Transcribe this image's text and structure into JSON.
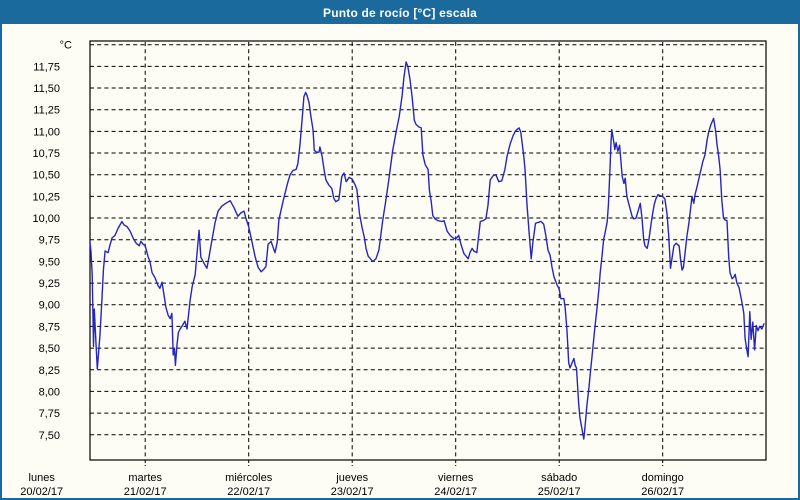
{
  "window": {
    "title": "Punto de rocío [°C] escala",
    "title_bar_color": "#1b6a9e",
    "frame_color": "#1b6a9e",
    "background_color": "#fdfdf6"
  },
  "chart_data": {
    "type": "line",
    "title": "Punto de rocío [°C] escala",
    "series_name": "Punto de rocío",
    "unit": "°C",
    "line_color": "#2525c0",
    "grid_color": "#000000",
    "grid_style": "dashed",
    "ylim": [
      7.2,
      12.05
    ],
    "y_axis": {
      "unit_label": "°C",
      "first_tick_value": 11.75,
      "tick_step": 0.25,
      "grid_top_value": 12.0,
      "grid_bottom_value": 7.5,
      "tick_labels": [
        "11,75",
        "11,50",
        "11,25",
        "11,00",
        "10,75",
        "10,50",
        "10,25",
        "10,00",
        "9,75",
        "9,50",
        "9,25",
        "9,00",
        "8,75",
        "8,50",
        "8,25",
        "8,00",
        "7,75",
        "7,50"
      ]
    },
    "x_axis": {
      "days": [
        {
          "name": "lunes",
          "date": "20/02/17",
          "hour": 0
        },
        {
          "name": "martes",
          "date": "21/02/17",
          "hour": 24
        },
        {
          "name": "miércoles",
          "date": "22/02/17",
          "hour": 48
        },
        {
          "name": "jueves",
          "date": "23/02/17",
          "hour": 72
        },
        {
          "name": "viernes",
          "date": "24/02/17",
          "hour": 96
        },
        {
          "name": "sábado",
          "date": "25/02/17",
          "hour": 120
        },
        {
          "name": "domingo",
          "date": "26/02/17",
          "hour": 144
        }
      ],
      "gridline_hours": [
        24,
        48,
        72,
        96,
        120,
        144
      ],
      "domain_hours": [
        11.2,
        167.5
      ]
    },
    "points": [
      [
        11.2,
        9.72
      ],
      [
        11.4,
        9.62
      ],
      [
        11.7,
        9.35
      ],
      [
        12.0,
        8.52
      ],
      [
        12.2,
        8.95
      ],
      [
        12.6,
        8.55
      ],
      [
        12.9,
        8.26
      ],
      [
        13.2,
        8.45
      ],
      [
        13.5,
        8.64
      ],
      [
        14.0,
        9.1
      ],
      [
        14.3,
        9.4
      ],
      [
        14.7,
        9.62
      ],
      [
        15.4,
        9.6
      ],
      [
        15.8,
        9.68
      ],
      [
        16.3,
        9.77
      ],
      [
        17.0,
        9.8
      ],
      [
        17.7,
        9.88
      ],
      [
        18.6,
        9.96
      ],
      [
        19.1,
        9.92
      ],
      [
        19.8,
        9.9
      ],
      [
        20.5,
        9.85
      ],
      [
        21.2,
        9.77
      ],
      [
        21.9,
        9.71
      ],
      [
        22.6,
        9.68
      ],
      [
        23.0,
        9.73
      ],
      [
        23.5,
        9.7
      ],
      [
        24.0,
        9.68
      ],
      [
        24.7,
        9.55
      ],
      [
        25.1,
        9.5
      ],
      [
        25.6,
        9.37
      ],
      [
        26.3,
        9.31
      ],
      [
        27.0,
        9.22
      ],
      [
        27.4,
        9.19
      ],
      [
        27.9,
        9.26
      ],
      [
        28.4,
        9.1
      ],
      [
        28.8,
        8.97
      ],
      [
        29.3,
        8.88
      ],
      [
        29.8,
        8.84
      ],
      [
        30.2,
        8.9
      ],
      [
        30.5,
        8.42
      ],
      [
        30.8,
        8.5
      ],
      [
        31.0,
        8.3
      ],
      [
        31.4,
        8.55
      ],
      [
        31.7,
        8.68
      ],
      [
        32.1,
        8.72
      ],
      [
        32.5,
        8.75
      ],
      [
        33.2,
        8.81
      ],
      [
        33.7,
        8.72
      ],
      [
        34.4,
        9.05
      ],
      [
        34.9,
        9.21
      ],
      [
        35.6,
        9.35
      ],
      [
        36.0,
        9.58
      ],
      [
        36.5,
        9.86
      ],
      [
        36.9,
        9.55
      ],
      [
        37.6,
        9.48
      ],
      [
        38.3,
        9.42
      ],
      [
        38.8,
        9.55
      ],
      [
        39.5,
        9.75
      ],
      [
        40.2,
        9.95
      ],
      [
        40.9,
        10.08
      ],
      [
        41.8,
        10.14
      ],
      [
        42.7,
        10.17
      ],
      [
        43.7,
        10.2
      ],
      [
        44.6,
        10.12
      ],
      [
        45.5,
        10.02
      ],
      [
        46.2,
        10.06
      ],
      [
        46.9,
        10.08
      ],
      [
        47.4,
        9.99
      ],
      [
        48.0,
        9.9
      ],
      [
        48.8,
        9.72
      ],
      [
        49.5,
        9.55
      ],
      [
        50.2,
        9.43
      ],
      [
        50.9,
        9.38
      ],
      [
        51.5,
        9.41
      ],
      [
        52.0,
        9.44
      ],
      [
        52.5,
        9.7
      ],
      [
        53.2,
        9.73
      ],
      [
        53.6,
        9.67
      ],
      [
        54.1,
        9.6
      ],
      [
        54.6,
        9.72
      ],
      [
        55.0,
        9.98
      ],
      [
        56.0,
        10.2
      ],
      [
        57.0,
        10.4
      ],
      [
        57.6,
        10.5
      ],
      [
        58.3,
        10.55
      ],
      [
        59.0,
        10.56
      ],
      [
        59.4,
        10.63
      ],
      [
        59.9,
        10.85
      ],
      [
        60.4,
        11.15
      ],
      [
        60.8,
        11.4
      ],
      [
        61.2,
        11.45
      ],
      [
        61.5,
        11.42
      ],
      [
        62.0,
        11.33
      ],
      [
        62.4,
        11.18
      ],
      [
        62.9,
        11.02
      ],
      [
        63.2,
        10.78
      ],
      [
        63.8,
        10.76
      ],
      [
        64.3,
        10.76
      ],
      [
        64.5,
        10.82
      ],
      [
        65.0,
        10.72
      ],
      [
        65.5,
        10.55
      ],
      [
        65.9,
        10.44
      ],
      [
        66.6,
        10.38
      ],
      [
        67.3,
        10.34
      ],
      [
        67.7,
        10.23
      ],
      [
        68.2,
        10.19
      ],
      [
        68.9,
        10.21
      ],
      [
        69.6,
        10.48
      ],
      [
        70.1,
        10.52
      ],
      [
        70.6,
        10.42
      ],
      [
        71.3,
        10.47
      ],
      [
        72.0,
        10.45
      ],
      [
        72.7,
        10.38
      ],
      [
        73.1,
        10.33
      ],
      [
        73.7,
        10.05
      ],
      [
        74.3,
        9.89
      ],
      [
        74.8,
        9.78
      ],
      [
        75.2,
        9.65
      ],
      [
        75.7,
        9.56
      ],
      [
        76.4,
        9.52
      ],
      [
        76.8,
        9.5
      ],
      [
        77.5,
        9.53
      ],
      [
        78.2,
        9.63
      ],
      [
        79.1,
        9.98
      ],
      [
        79.8,
        10.2
      ],
      [
        80.5,
        10.45
      ],
      [
        81.4,
        10.78
      ],
      [
        82.2,
        11.0
      ],
      [
        82.9,
        11.17
      ],
      [
        83.6,
        11.42
      ],
      [
        84.0,
        11.62
      ],
      [
        84.5,
        11.8
      ],
      [
        84.9,
        11.75
      ],
      [
        85.4,
        11.6
      ],
      [
        85.9,
        11.4
      ],
      [
        86.4,
        11.13
      ],
      [
        86.8,
        11.08
      ],
      [
        87.5,
        11.05
      ],
      [
        88.0,
        11.04
      ],
      [
        88.4,
        10.73
      ],
      [
        88.9,
        10.62
      ],
      [
        89.6,
        10.56
      ],
      [
        89.9,
        10.32
      ],
      [
        90.3,
        10.2
      ],
      [
        90.7,
        10.03
      ],
      [
        91.2,
        9.99
      ],
      [
        91.9,
        9.97
      ],
      [
        92.8,
        9.96
      ],
      [
        93.3,
        9.97
      ],
      [
        94.0,
        9.85
      ],
      [
        94.7,
        9.8
      ],
      [
        95.4,
        9.77
      ],
      [
        96.0,
        9.76
      ],
      [
        96.7,
        9.8
      ],
      [
        97.2,
        9.7
      ],
      [
        97.9,
        9.59
      ],
      [
        98.4,
        9.56
      ],
      [
        98.9,
        9.53
      ],
      [
        99.3,
        9.6
      ],
      [
        99.8,
        9.65
      ],
      [
        100.2,
        9.62
      ],
      [
        100.9,
        9.6
      ],
      [
        101.7,
        9.96
      ],
      [
        102.3,
        9.97
      ],
      [
        103.0,
        9.99
      ],
      [
        103.5,
        10.15
      ],
      [
        104.0,
        10.44
      ],
      [
        104.7,
        10.49
      ],
      [
        105.3,
        10.5
      ],
      [
        106.0,
        10.42
      ],
      [
        106.7,
        10.43
      ],
      [
        107.4,
        10.56
      ],
      [
        107.9,
        10.71
      ],
      [
        108.6,
        10.85
      ],
      [
        109.3,
        10.95
      ],
      [
        109.8,
        11.0
      ],
      [
        110.2,
        11.02
      ],
      [
        110.7,
        11.04
      ],
      [
        111.1,
        10.99
      ],
      [
        111.8,
        10.71
      ],
      [
        112.1,
        10.55
      ],
      [
        112.5,
        10.17
      ],
      [
        113.0,
        9.85
      ],
      [
        113.5,
        9.53
      ],
      [
        113.9,
        9.72
      ],
      [
        114.5,
        9.94
      ],
      [
        115.1,
        9.95
      ],
      [
        115.8,
        9.96
      ],
      [
        116.4,
        9.93
      ],
      [
        116.9,
        9.8
      ],
      [
        117.4,
        9.63
      ],
      [
        117.9,
        9.57
      ],
      [
        118.3,
        9.44
      ],
      [
        118.8,
        9.32
      ],
      [
        119.5,
        9.23
      ],
      [
        120.0,
        9.18
      ],
      [
        120.4,
        9.07
      ],
      [
        121.1,
        9.07
      ],
      [
        121.4,
        8.96
      ],
      [
        121.8,
        8.7
      ],
      [
        122.2,
        8.33
      ],
      [
        122.5,
        8.27
      ],
      [
        123.0,
        8.33
      ],
      [
        123.4,
        8.38
      ],
      [
        123.7,
        8.3
      ],
      [
        124.0,
        8.27
      ],
      [
        124.5,
        7.87
      ],
      [
        124.8,
        7.7
      ],
      [
        125.3,
        7.56
      ],
      [
        125.7,
        7.45
      ],
      [
        126.0,
        7.6
      ],
      [
        126.4,
        7.83
      ],
      [
        126.9,
        8.05
      ],
      [
        127.2,
        8.21
      ],
      [
        127.6,
        8.4
      ],
      [
        128.0,
        8.6
      ],
      [
        128.3,
        8.75
      ],
      [
        128.8,
        8.98
      ],
      [
        129.2,
        9.18
      ],
      [
        129.5,
        9.37
      ],
      [
        129.9,
        9.55
      ],
      [
        130.3,
        9.75
      ],
      [
        130.6,
        9.82
      ],
      [
        131.1,
        9.95
      ],
      [
        131.4,
        10.15
      ],
      [
        131.8,
        10.6
      ],
      [
        132.0,
        10.85
      ],
      [
        132.2,
        11.02
      ],
      [
        132.7,
        10.86
      ],
      [
        132.9,
        10.79
      ],
      [
        133.2,
        10.87
      ],
      [
        133.6,
        10.77
      ],
      [
        134.0,
        10.84
      ],
      [
        134.6,
        10.48
      ],
      [
        135.0,
        10.4
      ],
      [
        135.3,
        10.46
      ],
      [
        135.7,
        10.25
      ],
      [
        136.2,
        10.15
      ],
      [
        136.9,
        10.02
      ],
      [
        137.3,
        9.99
      ],
      [
        137.8,
        10.0
      ],
      [
        138.3,
        10.08
      ],
      [
        138.8,
        10.17
      ],
      [
        139.2,
        10.0
      ],
      [
        139.6,
        9.75
      ],
      [
        139.9,
        9.68
      ],
      [
        140.4,
        9.65
      ],
      [
        140.8,
        9.75
      ],
      [
        141.5,
        10.0
      ],
      [
        142.0,
        10.15
      ],
      [
        142.4,
        10.22
      ],
      [
        142.9,
        10.27
      ],
      [
        143.4,
        10.26
      ],
      [
        144.0,
        10.25
      ],
      [
        144.5,
        10.22
      ],
      [
        145.0,
        10.05
      ],
      [
        145.4,
        9.8
      ],
      [
        145.8,
        9.42
      ],
      [
        146.2,
        9.55
      ],
      [
        146.6,
        9.68
      ],
      [
        147.1,
        9.71
      ],
      [
        147.8,
        9.68
      ],
      [
        148.2,
        9.5
      ],
      [
        148.5,
        9.4
      ],
      [
        148.8,
        9.43
      ],
      [
        149.2,
        9.6
      ],
      [
        149.6,
        9.79
      ],
      [
        150.1,
        9.95
      ],
      [
        150.8,
        10.25
      ],
      [
        151.2,
        10.17
      ],
      [
        151.5,
        10.27
      ],
      [
        151.9,
        10.35
      ],
      [
        152.7,
        10.52
      ],
      [
        153.3,
        10.65
      ],
      [
        153.8,
        10.73
      ],
      [
        154.3,
        10.9
      ],
      [
        154.7,
        11.0
      ],
      [
        155.2,
        11.08
      ],
      [
        155.8,
        11.15
      ],
      [
        156.3,
        11.0
      ],
      [
        156.6,
        10.85
      ],
      [
        157.0,
        10.7
      ],
      [
        157.3,
        10.56
      ],
      [
        157.7,
        10.21
      ],
      [
        158.1,
        10.0
      ],
      [
        158.4,
        9.98
      ],
      [
        158.9,
        9.97
      ],
      [
        159.3,
        9.55
      ],
      [
        159.6,
        9.37
      ],
      [
        160.1,
        9.3
      ],
      [
        160.5,
        9.32
      ],
      [
        160.8,
        9.35
      ],
      [
        161.2,
        9.25
      ],
      [
        161.7,
        9.2
      ],
      [
        162.4,
        9.02
      ],
      [
        162.8,
        8.9
      ],
      [
        163.1,
        8.61
      ],
      [
        163.5,
        8.48
      ],
      [
        163.8,
        8.4
      ],
      [
        164.2,
        8.92
      ],
      [
        164.5,
        8.6
      ],
      [
        164.9,
        8.8
      ],
      [
        165.3,
        8.48
      ],
      [
        165.7,
        8.76
      ],
      [
        166.1,
        8.7
      ],
      [
        166.5,
        8.75
      ],
      [
        167.0,
        8.72
      ],
      [
        167.5,
        8.78
      ]
    ]
  }
}
